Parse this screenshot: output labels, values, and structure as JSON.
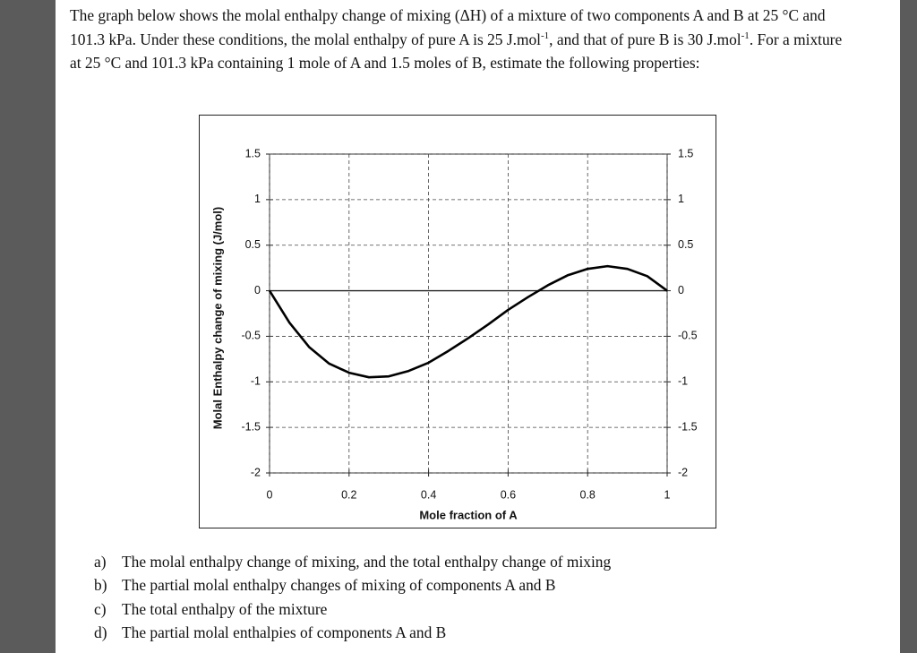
{
  "document": {
    "paragraph": [
      "The graph below shows the molal enthalpy change of mixing (ΔH) of a mixture of two components A and B at 25 °C and 101.3 kPa. Under these conditions, the molal enthalpy of pure A is 25 J.mol",
      "-1",
      ", and that of pure B is 30 J.mol",
      "-1",
      ". For a mixture at 25 °C and 101.3 kPa containing 1 mole of A and 1.5 moles of B, estimate the following properties:"
    ],
    "items": [
      {
        "marker": "a)",
        "text": "The molal enthalpy change of mixing, and the total enthalpy change of mixing"
      },
      {
        "marker": "b)",
        "text": "The partial molal enthalpy changes of mixing of components A and B"
      },
      {
        "marker": "c)",
        "text": "The total enthalpy of the mixture"
      },
      {
        "marker": "d)",
        "text": "The partial molal enthalpies of components A and B"
      }
    ]
  },
  "chart_data": {
    "type": "line",
    "x_label": "Mole fraction of A",
    "y_label": "Molal Enthalpy change of mixing (J/mol)",
    "x": [
      0,
      0.05,
      0.1,
      0.15,
      0.2,
      0.25,
      0.3,
      0.35,
      0.4,
      0.45,
      0.5,
      0.55,
      0.6,
      0.65,
      0.7,
      0.75,
      0.8,
      0.85,
      0.9,
      0.95,
      1
    ],
    "series": [
      {
        "color": "#000000",
        "values": [
          0,
          -0.35,
          -0.62,
          -0.8,
          -0.9,
          -0.95,
          -0.94,
          -0.88,
          -0.79,
          -0.66,
          -0.52,
          -0.37,
          -0.21,
          -0.07,
          0.06,
          0.17,
          0.24,
          0.27,
          0.24,
          0.16,
          0
        ]
      }
    ],
    "xlim": [
      0,
      1
    ],
    "xticks": [
      0,
      0.2,
      0.4,
      0.6,
      0.8,
      1
    ],
    "ylim": [
      -2,
      1.5
    ],
    "yticks": [
      1.5,
      1,
      0.5,
      0,
      -0.5,
      -1,
      -1.5,
      -2
    ],
    "grid": true
  }
}
